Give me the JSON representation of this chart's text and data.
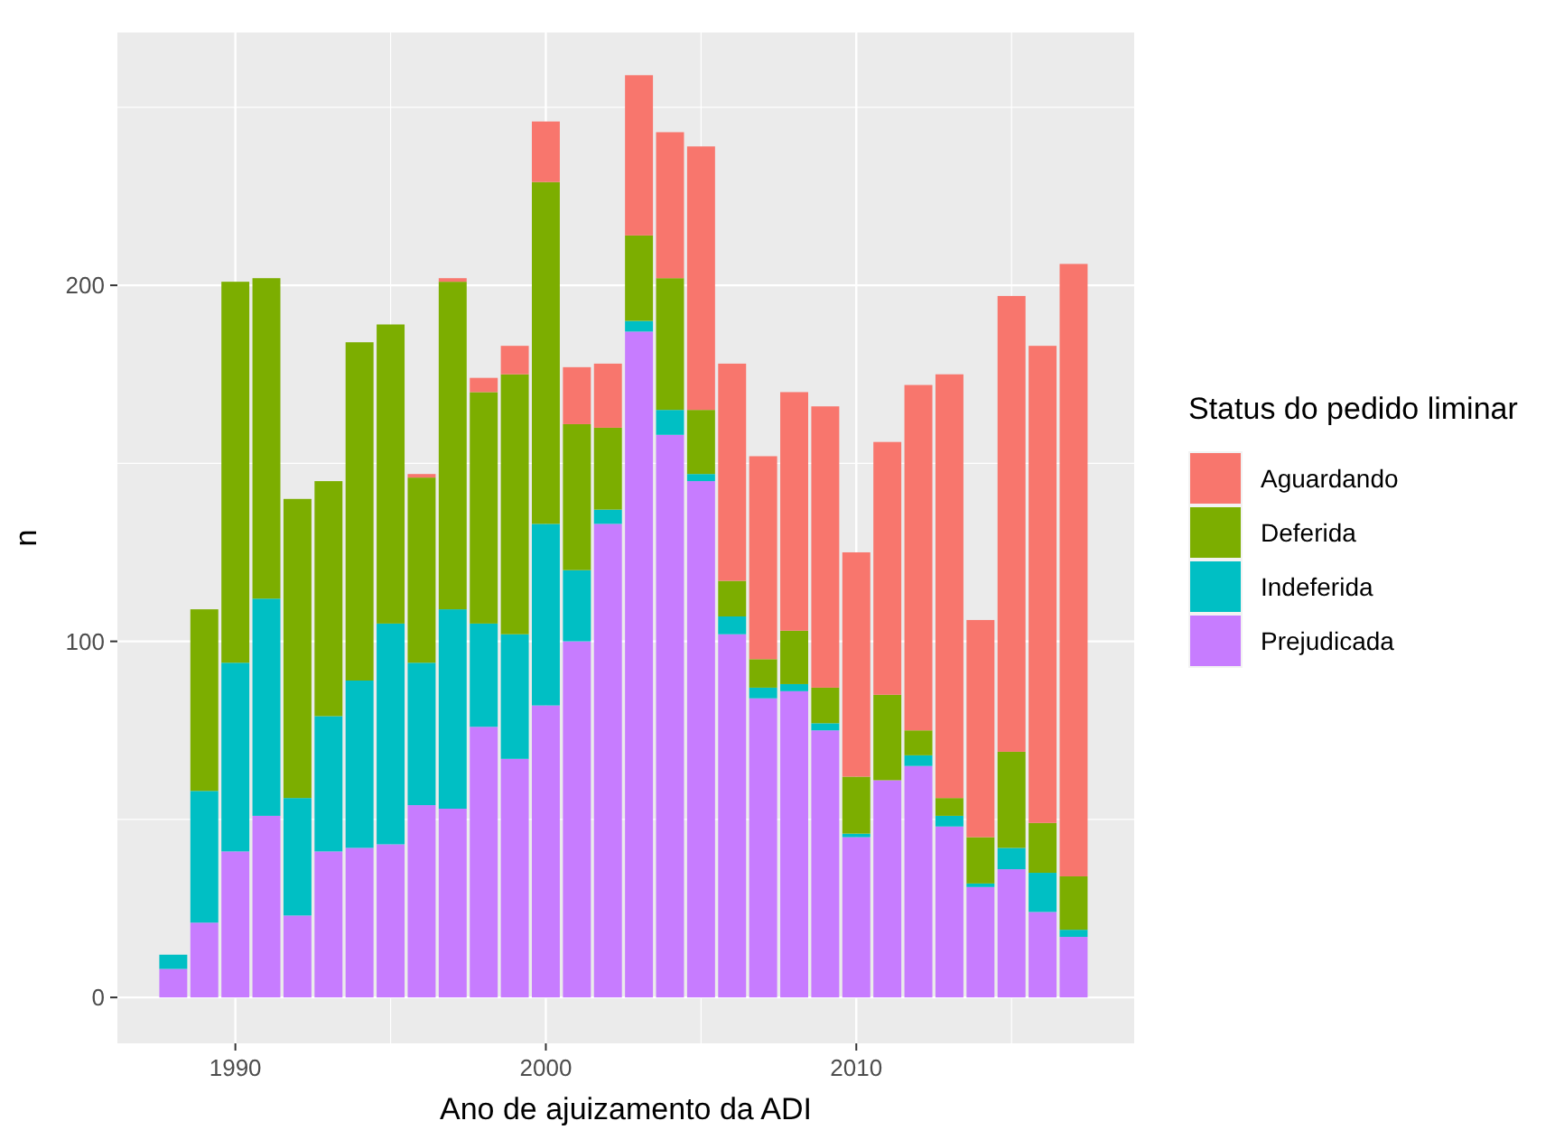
{
  "chart_data": {
    "type": "bar",
    "stacked": true,
    "xlabel": "Ano de ajuizamento da ADI",
    "ylabel": "n",
    "legend_title": "Status do pedido liminar",
    "legend": "right",
    "grid": true,
    "x": [
      1988,
      1989,
      1990,
      1991,
      1992,
      1993,
      1994,
      1995,
      1996,
      1997,
      1998,
      1999,
      2000,
      2001,
      2002,
      2003,
      2004,
      2005,
      2006,
      2007,
      2008,
      2009,
      2010,
      2011,
      2012,
      2013,
      2014,
      2015,
      2016,
      2017
    ],
    "xlim": [
      1986.2,
      2018.95
    ],
    "xticks": [
      1990,
      2000,
      2010
    ],
    "ylim": [
      -12.9,
      271
    ],
    "yticks": [
      0,
      100,
      200
    ],
    "series": [
      {
        "name": "Prejudicada",
        "color": "#c77cff",
        "values": [
          8,
          21,
          41,
          51,
          23,
          41,
          42,
          43,
          54,
          53,
          76,
          67,
          82,
          100,
          133,
          187,
          158,
          145,
          102,
          84,
          86,
          75,
          45,
          61,
          65,
          48,
          31,
          36,
          24,
          17
        ]
      },
      {
        "name": "Indeferida",
        "color": "#00bfc4",
        "values": [
          4,
          37,
          53,
          61,
          33,
          38,
          47,
          62,
          40,
          56,
          29,
          35,
          51,
          20,
          4,
          3,
          7,
          2,
          5,
          3,
          2,
          2,
          1,
          0,
          3,
          3,
          1,
          6,
          11,
          2
        ]
      },
      {
        "name": "Deferida",
        "color": "#7cae00",
        "values": [
          0,
          51,
          107,
          90,
          84,
          66,
          95,
          84,
          52,
          92,
          65,
          73,
          96,
          41,
          23,
          24,
          37,
          18,
          10,
          8,
          15,
          10,
          16,
          24,
          7,
          5,
          13,
          27,
          14,
          15
        ]
      },
      {
        "name": "Aguardando",
        "color": "#f8766d",
        "values": [
          0,
          0,
          0,
          0,
          0,
          0,
          0,
          0,
          1,
          1,
          4,
          8,
          17,
          16,
          18,
          45,
          41,
          74,
          61,
          57,
          67,
          79,
          63,
          71,
          97,
          119,
          61,
          128,
          134,
          172
        ]
      }
    ]
  }
}
